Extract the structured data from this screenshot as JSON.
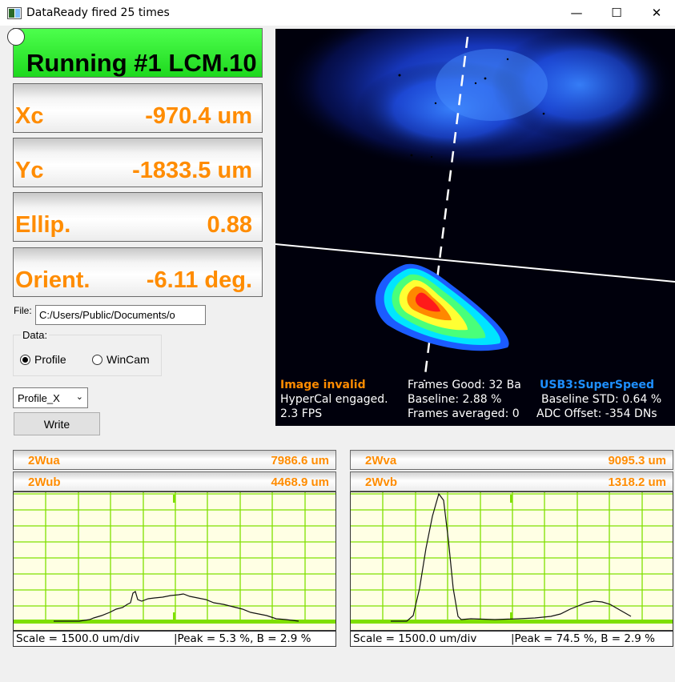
{
  "window": {
    "title": "DataReady fired 25 times",
    "minimize_glyph": "—",
    "maximize_glyph": "☐",
    "close_glyph": "✕"
  },
  "status": {
    "running_text": "Running #1 LCM.10",
    "color": "#22e622"
  },
  "readouts": [
    {
      "label": "Xc",
      "value": "-970.4 um"
    },
    {
      "label": "Yc",
      "value": "-1833.5 um"
    },
    {
      "label": "Ellip.",
      "value": "0.88"
    },
    {
      "label": "Orient.",
      "value": "-6.11 deg."
    }
  ],
  "file": {
    "label": "File:",
    "path": "C:/Users/Public/Documents/o"
  },
  "data_group": {
    "label": "Data:",
    "options": [
      {
        "label": "Profile",
        "selected": true
      },
      {
        "label": "WinCam",
        "selected": false
      }
    ]
  },
  "profile_select": {
    "value": "Profile_X"
  },
  "write_button": {
    "label": "Write"
  },
  "image_overlay": {
    "image_invalid": "Image invalid",
    "frames_good": "Frames Good: 32 Ba",
    "usb": "USB3:SuperSpeed",
    "hypercal": "HyperCal engaged.",
    "baseline": "Baseline: 2.88 %",
    "baseline_std": "Baseline STD:  0.64 %",
    "fps": "2.3 FPS",
    "frames_averaged": "Frames averaged: 0",
    "adc_offset": "ADC Offset: -354 DNs",
    "colors": {
      "invalid": "#ff8c00",
      "usb": "#1e90ff",
      "text": "#ffffff"
    }
  },
  "profiles": {
    "left": {
      "header1": {
        "key": "2Wua",
        "value": "7986.6 um"
      },
      "header2": {
        "key": "2Wub",
        "value": "4468.9 um"
      },
      "scale": "Scale = 1500.0 um/div",
      "peak": "|Peak = 5.3 %,  B = 2.9 %"
    },
    "right": {
      "header1": {
        "key": "2Wva",
        "value": "9095.3 um"
      },
      "header2": {
        "key": "2Wvb",
        "value": "1318.2 um"
      },
      "scale": "Scale = 1500.0 um/div",
      "peak": "|Peak = 74.5 %,  B = 2.9 %"
    },
    "colors": {
      "grid": "#7fe000",
      "background": "#ffffe4",
      "accent": "#ff8c00"
    }
  }
}
